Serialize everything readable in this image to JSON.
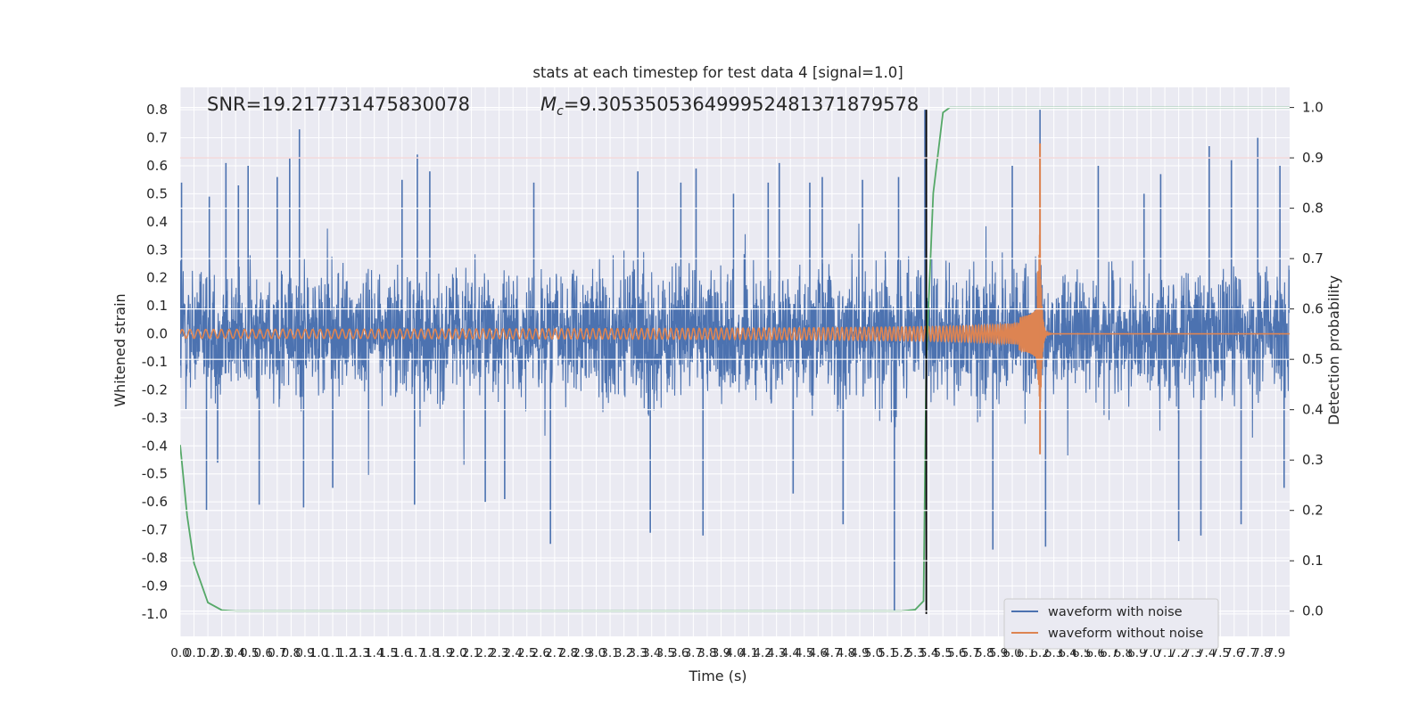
{
  "chart_data": {
    "type": "line",
    "title": "stats at each timestep for test data 4 [signal=1.0]",
    "xlabel": "Time (s)",
    "ylabel_left": "Whitened strain",
    "ylabel_right": "Detection probability",
    "xlim": [
      0.0,
      8.0
    ],
    "ylim_left": [
      -1.08,
      0.88
    ],
    "ylim_right": [
      -0.05,
      1.04
    ],
    "grid": true,
    "legend_position": "lower-right",
    "x_ticks": [
      "0.0",
      "0.1",
      "0.2",
      "0.3",
      "0.4",
      "0.5",
      "0.6",
      "0.7",
      "0.8",
      "0.9",
      "1.0",
      "1.1",
      "1.2",
      "1.3",
      "1.4",
      "1.5",
      "1.6",
      "1.7",
      "1.8",
      "1.9",
      "2.0",
      "2.1",
      "2.2",
      "2.3",
      "2.4",
      "2.5",
      "2.6",
      "2.7",
      "2.8",
      "2.9",
      "3.0",
      "3.1",
      "3.2",
      "3.3",
      "3.4",
      "3.5",
      "3.6",
      "3.7",
      "3.8",
      "3.9",
      "4.0",
      "4.1",
      "4.2",
      "4.3",
      "4.4",
      "4.5",
      "4.6",
      "4.7",
      "4.8",
      "4.9",
      "5.0",
      "5.1",
      "5.2",
      "5.3",
      "5.4",
      "5.5",
      "5.6",
      "5.7",
      "5.8",
      "5.9",
      "6.0",
      "6.1",
      "6.2",
      "6.3",
      "6.4",
      "6.5",
      "6.6",
      "6.7",
      "6.8",
      "6.9",
      "7.0",
      "7.1",
      "7.2",
      "7.3",
      "7.4",
      "7.5",
      "7.6",
      "7.7",
      "7.8",
      "7.9"
    ],
    "y_ticks_left": [
      "0.8",
      "0.7",
      "0.6",
      "0.5",
      "0.4",
      "0.3",
      "0.2",
      "0.1",
      "0.0",
      "-0.1",
      "-0.2",
      "-0.3",
      "-0.4",
      "-0.5",
      "-0.6",
      "-0.7",
      "-0.8",
      "-0.9",
      "-1.0"
    ],
    "y_ticks_right": [
      "1.0",
      "0.9",
      "0.8",
      "0.7",
      "0.6",
      "0.5",
      "0.4",
      "0.3",
      "0.2",
      "0.1",
      "0.0"
    ],
    "annotations": {
      "snr": "SNR=19.217731475830078",
      "mc_prefix": "M",
      "mc_sub": "c",
      "mc_value": "=9.305350536499952481371879578"
    },
    "threshold_line": {
      "axis": "right",
      "value": 0.9,
      "color": "#c44e52"
    },
    "vertical_marker": {
      "x": 5.38,
      "color": "#000000"
    },
    "colors": {
      "noise": "#4c72b0",
      "clean": "#dd8452",
      "probability": "#55a868",
      "background": "#eaeaf2",
      "grid": "#ffffff"
    },
    "series": [
      {
        "name": "waveform with noise",
        "axis": "left",
        "description_envelope": {
          "typical_amplitude": 0.27,
          "peak_max": 0.8,
          "peak_min": -1.0
        },
        "peaks": [
          [
            0.01,
            0.54
          ],
          [
            0.19,
            -0.63
          ],
          [
            0.21,
            0.49
          ],
          [
            0.27,
            -0.46
          ],
          [
            0.33,
            0.61
          ],
          [
            0.42,
            0.53
          ],
          [
            0.49,
            0.6
          ],
          [
            0.57,
            -0.61
          ],
          [
            0.7,
            0.56
          ],
          [
            0.79,
            0.63
          ],
          [
            0.86,
            0.73
          ],
          [
            0.89,
            -0.62
          ],
          [
            1.1,
            -0.55
          ],
          [
            1.6,
            0.55
          ],
          [
            1.69,
            -0.61
          ],
          [
            1.71,
            0.64
          ],
          [
            1.8,
            0.58
          ],
          [
            2.2,
            -0.6
          ],
          [
            2.34,
            -0.59
          ],
          [
            2.55,
            0.54
          ],
          [
            2.67,
            -0.75
          ],
          [
            3.3,
            0.58
          ],
          [
            3.39,
            -0.71
          ],
          [
            3.61,
            0.54
          ],
          [
            3.72,
            0.59
          ],
          [
            3.77,
            -0.72
          ],
          [
            3.99,
            0.5
          ],
          [
            4.24,
            0.54
          ],
          [
            4.32,
            0.61
          ],
          [
            4.42,
            -0.57
          ],
          [
            4.54,
            0.54
          ],
          [
            4.63,
            0.56
          ],
          [
            4.78,
            -0.68
          ],
          [
            4.92,
            0.55
          ],
          [
            5.15,
            -0.99
          ],
          [
            5.18,
            0.56
          ],
          [
            5.37,
            0.8
          ],
          [
            5.86,
            -0.77
          ],
          [
            6.0,
            0.6
          ],
          [
            6.2,
            0.8
          ],
          [
            6.24,
            -0.76
          ],
          [
            6.62,
            0.6
          ],
          [
            6.95,
            0.5
          ],
          [
            7.07,
            0.57
          ],
          [
            7.2,
            -0.74
          ],
          [
            7.36,
            -0.72
          ],
          [
            7.42,
            0.67
          ],
          [
            7.58,
            0.62
          ],
          [
            7.65,
            -0.68
          ],
          [
            7.77,
            0.7
          ],
          [
            7.93,
            0.6
          ],
          [
            7.96,
            -0.55
          ]
        ]
      },
      {
        "name": "waveform without noise",
        "axis": "left",
        "model": "inspiral chirp, merger at t=6.2 s, peak +0.68 / -0.43",
        "merger_time": 6.2,
        "peak_positive": 0.68,
        "peak_negative": -0.43
      },
      {
        "name": "",
        "axis": "right",
        "points": [
          [
            0.0,
            0.33
          ],
          [
            0.05,
            0.19
          ],
          [
            0.1,
            0.095
          ],
          [
            0.2,
            0.017
          ],
          [
            0.3,
            0.002
          ],
          [
            0.4,
            0.0
          ],
          [
            5.2,
            0.0
          ],
          [
            5.3,
            0.003
          ],
          [
            5.36,
            0.02
          ],
          [
            5.38,
            0.5
          ],
          [
            5.43,
            0.83
          ],
          [
            5.5,
            0.99
          ],
          [
            5.55,
            1.0
          ],
          [
            8.0,
            1.0
          ]
        ]
      }
    ]
  }
}
